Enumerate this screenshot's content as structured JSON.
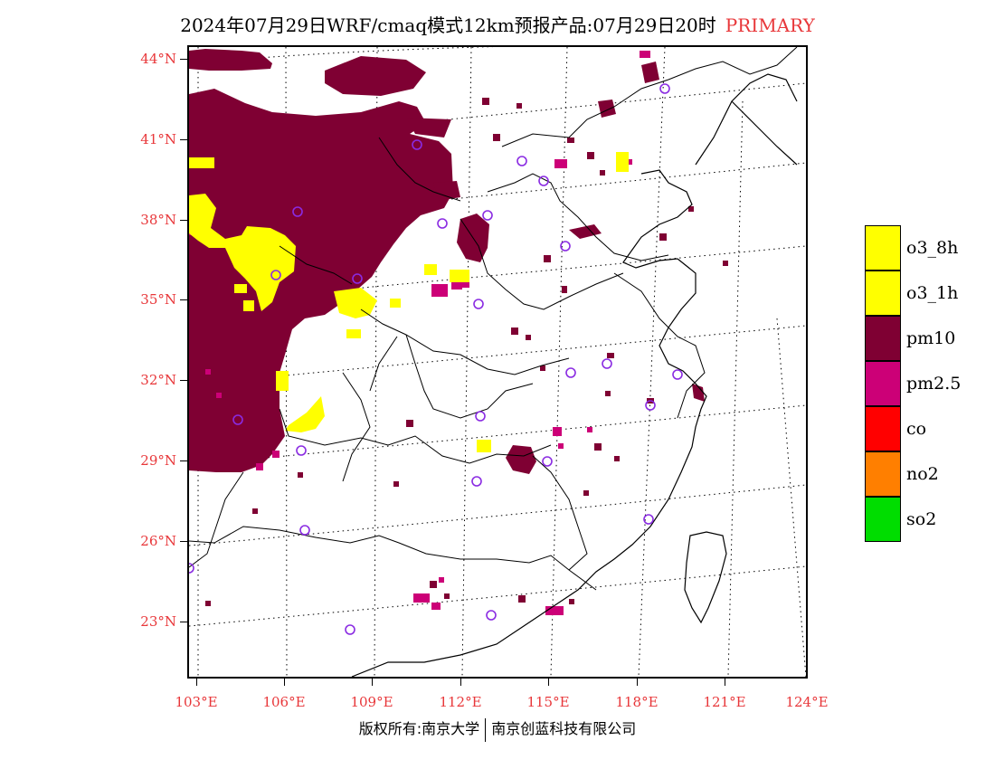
{
  "header": {
    "title": "2024年07月29日WRF/cmaq模式12km预报产品:07月29日20时",
    "status": "PRIMARY"
  },
  "axes": {
    "latitude_labels": [
      "44°N",
      "41°N",
      "38°N",
      "35°N",
      "32°N",
      "29°N",
      "26°N",
      "23°N"
    ],
    "longitude_labels": [
      "103°E",
      "106°E",
      "109°E",
      "112°E",
      "115°E",
      "118°E",
      "121°E",
      "124°E"
    ]
  },
  "legend": {
    "items": [
      {
        "label": "o3_8h",
        "color": "#ffff00"
      },
      {
        "label": "o3_1h",
        "color": "#ffff00"
      },
      {
        "label": "pm10",
        "color": "#7f0033"
      },
      {
        "label": "pm2.5",
        "color": "#cc0077"
      },
      {
        "label": "co",
        "color": "#ff0000"
      },
      {
        "label": "no2",
        "color": "#ff7f00"
      },
      {
        "label": "so2",
        "color": "#00dd00"
      }
    ]
  },
  "map": {
    "colors": {
      "pm10": "#7f0033",
      "pm25": "#cc0077",
      "o3": "#ffff00",
      "station_marker": "#8a2be2",
      "boundary": "#000000",
      "grid": "#000000"
    }
  },
  "footer": {
    "left": "版权所有:南京大学",
    "right": "南京创蓝科技有限公司"
  }
}
